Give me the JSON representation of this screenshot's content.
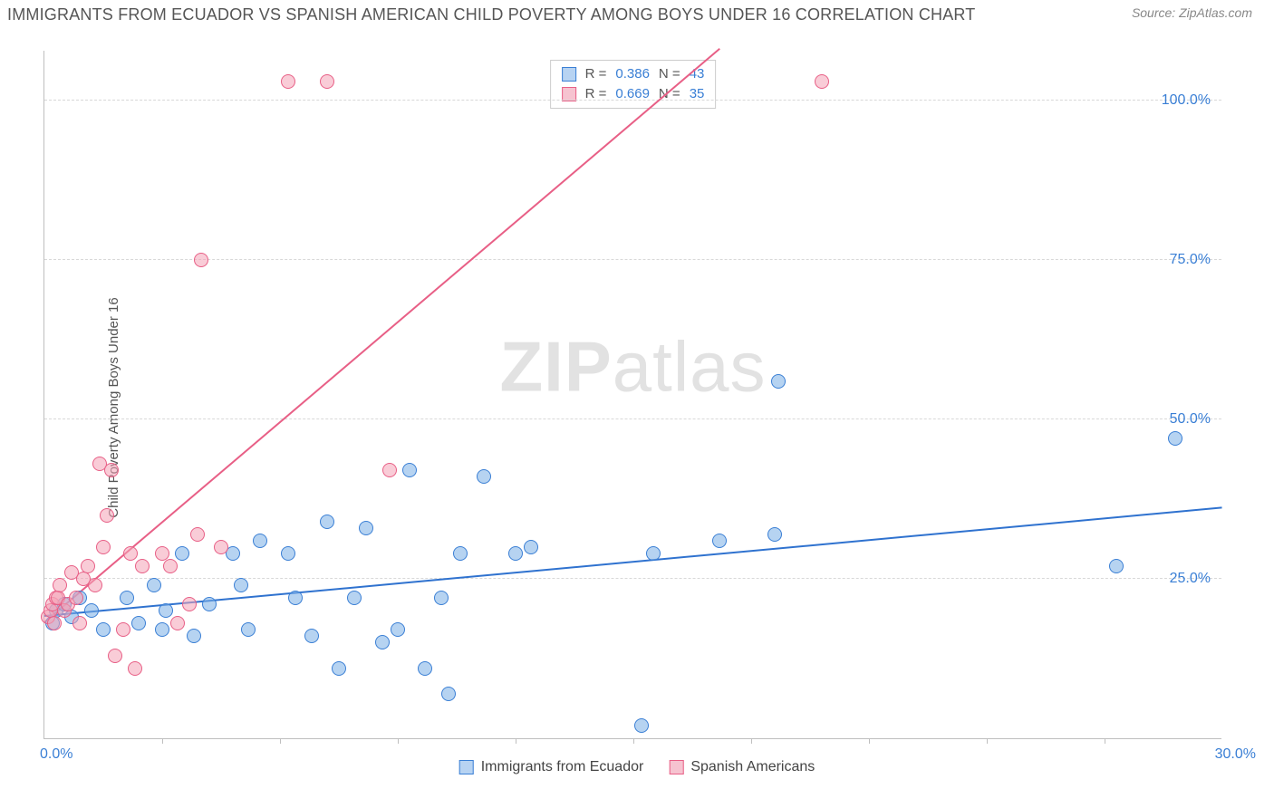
{
  "header": {
    "title": "IMMIGRANTS FROM ECUADOR VS SPANISH AMERICAN CHILD POVERTY AMONG BOYS UNDER 16 CORRELATION CHART",
    "source": "Source: ZipAtlas.com"
  },
  "chart": {
    "type": "scatter",
    "ylabel": "Child Poverty Among Boys Under 16",
    "watermark_a": "ZIP",
    "watermark_b": "atlas",
    "xlim": [
      0,
      30
    ],
    "ylim": [
      0,
      108
    ],
    "yticks": [
      {
        "v": 25,
        "label": "25.0%"
      },
      {
        "v": 50,
        "label": "50.0%"
      },
      {
        "v": 75,
        "label": "75.0%"
      },
      {
        "v": 100,
        "label": "100.0%"
      }
    ],
    "xticks_major": [
      0,
      30
    ],
    "xtick0_label": "0.0%",
    "xtick30_label": "30.0%",
    "xticks_minor": [
      3,
      6,
      9,
      12,
      15,
      18,
      21,
      24,
      27
    ],
    "legend_top": [
      {
        "swatch_fill": "#b7d3f2",
        "swatch_border": "#3a7fd5",
        "r_label": "R =",
        "r": "0.386",
        "n_label": "N =",
        "n": "43"
      },
      {
        "swatch_fill": "#f6c3d0",
        "swatch_border": "#e85f86",
        "r_label": "R =",
        "r": "0.669",
        "n_label": "N =",
        "n": "35"
      }
    ],
    "legend_bottom": [
      {
        "swatch_fill": "#b7d3f2",
        "swatch_border": "#3a7fd5",
        "label": "Immigrants from Ecuador"
      },
      {
        "swatch_fill": "#f6c3d0",
        "swatch_border": "#e85f86",
        "label": "Spanish Americans"
      }
    ],
    "series": [
      {
        "name": "Immigrants from Ecuador",
        "color_fill": "rgba(122,174,230,0.55)",
        "color_border": "#3a7fd5",
        "marker_r": 8,
        "trend": {
          "x1": 0,
          "y1": 19,
          "x2": 30,
          "y2": 36,
          "color": "#2f72cf",
          "width": 2
        },
        "points": [
          [
            0.2,
            18
          ],
          [
            0.3,
            20
          ],
          [
            0.5,
            21
          ],
          [
            0.7,
            19
          ],
          [
            0.9,
            22
          ],
          [
            1.2,
            20
          ],
          [
            1.5,
            17
          ],
          [
            2.1,
            22
          ],
          [
            2.4,
            18
          ],
          [
            2.8,
            24
          ],
          [
            3.0,
            17
          ],
          [
            3.1,
            20
          ],
          [
            3.5,
            29
          ],
          [
            3.8,
            16
          ],
          [
            4.2,
            21
          ],
          [
            4.8,
            29
          ],
          [
            5.0,
            24
          ],
          [
            5.2,
            17
          ],
          [
            5.5,
            31
          ],
          [
            6.2,
            29
          ],
          [
            6.4,
            22
          ],
          [
            6.8,
            16
          ],
          [
            7.2,
            34
          ],
          [
            7.5,
            11
          ],
          [
            7.9,
            22
          ],
          [
            8.2,
            33
          ],
          [
            8.6,
            15
          ],
          [
            9.0,
            17
          ],
          [
            9.3,
            42
          ],
          [
            9.7,
            11
          ],
          [
            10.1,
            22
          ],
          [
            10.3,
            7
          ],
          [
            10.6,
            29
          ],
          [
            11.2,
            41
          ],
          [
            12.0,
            29
          ],
          [
            12.4,
            30
          ],
          [
            15.5,
            29
          ],
          [
            15.2,
            2
          ],
          [
            17.2,
            31
          ],
          [
            18.6,
            32
          ],
          [
            18.7,
            56
          ],
          [
            27.3,
            27
          ],
          [
            28.8,
            47
          ]
        ]
      },
      {
        "name": "Spanish Americans",
        "color_fill": "rgba(244,162,182,0.55)",
        "color_border": "#e85f86",
        "marker_r": 8,
        "trend": {
          "x1": 0,
          "y1": 18,
          "x2": 17.2,
          "y2": 108,
          "color": "#e85f86",
          "width": 2
        },
        "points": [
          [
            0.1,
            19
          ],
          [
            0.15,
            20
          ],
          [
            0.2,
            21
          ],
          [
            0.25,
            18
          ],
          [
            0.3,
            22
          ],
          [
            0.35,
            22
          ],
          [
            0.4,
            24
          ],
          [
            0.5,
            20
          ],
          [
            0.6,
            21
          ],
          [
            0.7,
            26
          ],
          [
            0.8,
            22
          ],
          [
            0.9,
            18
          ],
          [
            1.0,
            25
          ],
          [
            1.1,
            27
          ],
          [
            1.3,
            24
          ],
          [
            1.4,
            43
          ],
          [
            1.5,
            30
          ],
          [
            1.6,
            35
          ],
          [
            1.7,
            42
          ],
          [
            1.8,
            13
          ],
          [
            2.0,
            17
          ],
          [
            2.2,
            29
          ],
          [
            2.3,
            11
          ],
          [
            2.5,
            27
          ],
          [
            3.0,
            29
          ],
          [
            3.2,
            27
          ],
          [
            3.4,
            18
          ],
          [
            3.7,
            21
          ],
          [
            3.9,
            32
          ],
          [
            4.0,
            75
          ],
          [
            4.5,
            30
          ],
          [
            6.2,
            103
          ],
          [
            7.2,
            103
          ],
          [
            8.8,
            42
          ],
          [
            19.8,
            103
          ]
        ]
      }
    ]
  }
}
